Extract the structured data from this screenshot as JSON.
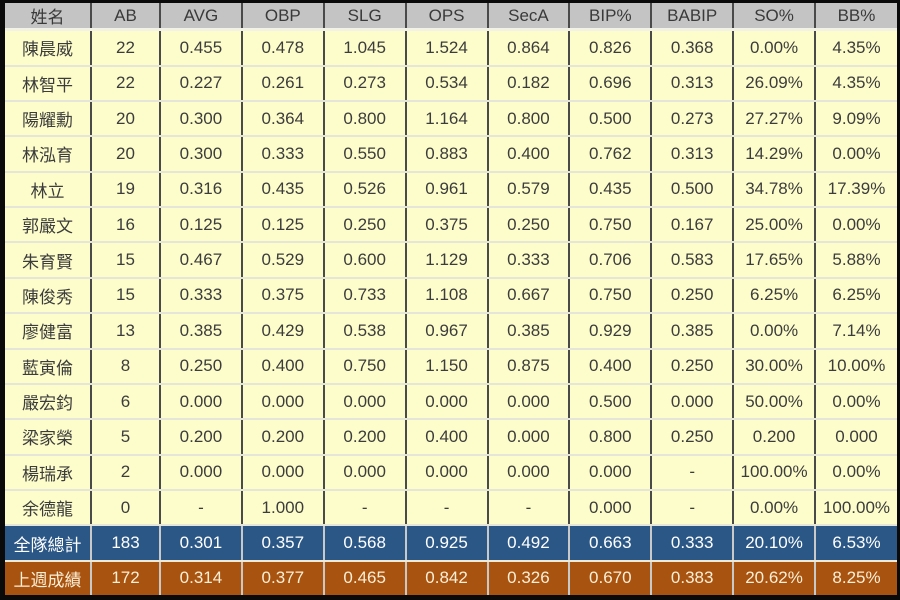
{
  "table": {
    "columns": [
      "姓名",
      "AB",
      "AVG",
      "OBP",
      "SLG",
      "OPS",
      "SecA",
      "BIP%",
      "BABIP",
      "SO%",
      "BB%"
    ],
    "rows": [
      [
        "陳晨威",
        "22",
        "0.455",
        "0.478",
        "1.045",
        "1.524",
        "0.864",
        "0.826",
        "0.368",
        "0.00%",
        "4.35%"
      ],
      [
        "林智平",
        "22",
        "0.227",
        "0.261",
        "0.273",
        "0.534",
        "0.182",
        "0.696",
        "0.313",
        "26.09%",
        "4.35%"
      ],
      [
        "陽耀勳",
        "20",
        "0.300",
        "0.364",
        "0.800",
        "1.164",
        "0.800",
        "0.500",
        "0.273",
        "27.27%",
        "9.09%"
      ],
      [
        "林泓育",
        "20",
        "0.300",
        "0.333",
        "0.550",
        "0.883",
        "0.400",
        "0.762",
        "0.313",
        "14.29%",
        "0.00%"
      ],
      [
        "林立",
        "19",
        "0.316",
        "0.435",
        "0.526",
        "0.961",
        "0.579",
        "0.435",
        "0.500",
        "34.78%",
        "17.39%"
      ],
      [
        "郭嚴文",
        "16",
        "0.125",
        "0.125",
        "0.250",
        "0.375",
        "0.250",
        "0.750",
        "0.167",
        "25.00%",
        "0.00%"
      ],
      [
        "朱育賢",
        "15",
        "0.467",
        "0.529",
        "0.600",
        "1.129",
        "0.333",
        "0.706",
        "0.583",
        "17.65%",
        "5.88%"
      ],
      [
        "陳俊秀",
        "15",
        "0.333",
        "0.375",
        "0.733",
        "1.108",
        "0.667",
        "0.750",
        "0.250",
        "6.25%",
        "6.25%"
      ],
      [
        "廖健富",
        "13",
        "0.385",
        "0.429",
        "0.538",
        "0.967",
        "0.385",
        "0.929",
        "0.385",
        "0.00%",
        "7.14%"
      ],
      [
        "藍寅倫",
        "8",
        "0.250",
        "0.400",
        "0.750",
        "1.150",
        "0.875",
        "0.400",
        "0.250",
        "30.00%",
        "10.00%"
      ],
      [
        "嚴宏鈞",
        "6",
        "0.000",
        "0.000",
        "0.000",
        "0.000",
        "0.000",
        "0.500",
        "0.000",
        "50.00%",
        "0.00%"
      ],
      [
        "梁家榮",
        "5",
        "0.200",
        "0.200",
        "0.200",
        "0.400",
        "0.000",
        "0.800",
        "0.250",
        "0.200",
        "0.000"
      ],
      [
        "楊瑞承",
        "2",
        "0.000",
        "0.000",
        "0.000",
        "0.000",
        "0.000",
        "0.000",
        "-",
        "100.00%",
        "0.00%"
      ],
      [
        "余德龍",
        "0",
        "-",
        "1.000",
        "-",
        "-",
        "-",
        "0.000",
        "-",
        "0.00%",
        "100.00%"
      ]
    ],
    "team_total": [
      "全隊總計",
      "183",
      "0.301",
      "0.357",
      "0.568",
      "0.925",
      "0.492",
      "0.663",
      "0.333",
      "20.10%",
      "6.53%"
    ],
    "last_week": [
      "上週成績",
      "172",
      "0.314",
      "0.377",
      "0.465",
      "0.842",
      "0.326",
      "0.670",
      "0.383",
      "20.62%",
      "8.25%"
    ]
  },
  "colors": {
    "header_bg": "#C4C4C4",
    "header_text": "#3A3A3A",
    "cell_bg": "#FDFDCB",
    "body_text": "#3C3C3C",
    "grid_vertical": "#4A4A4A",
    "grid_horizontal": "#E6E6D8",
    "team_total_bg": "#2B5787",
    "total_text": "#FFFFFF",
    "last_week_bg": "#A8530F",
    "lastweek_text": "#FBEFD7"
  }
}
